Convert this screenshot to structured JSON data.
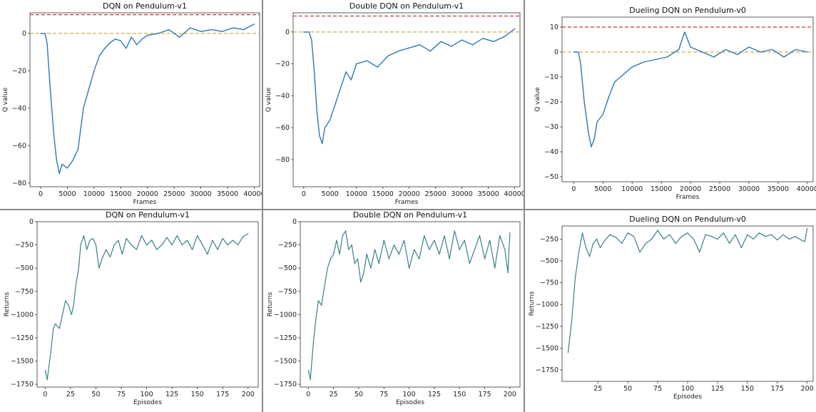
{
  "colors": {
    "q_line": "#2e79b5",
    "return_line": "#3b7f8a",
    "red_ref": "#c8373e",
    "yellow_ref": "#c9b04a",
    "frame": "#8a8a8a"
  },
  "chart_data": [
    {
      "type": "line",
      "title": "DQN on Pendulum-v1",
      "xlabel": "Frames",
      "ylabel": "Q value",
      "xlim": [
        -2000,
        41000
      ],
      "ylim": [
        -82,
        11
      ],
      "xticks": [
        0,
        5000,
        10000,
        15000,
        20000,
        25000,
        30000,
        35000,
        40000
      ],
      "yticks": [
        0,
        -20,
        -40,
        -60,
        -80
      ],
      "reference_lines": [
        {
          "y": 10,
          "color": "red",
          "style": "dashed"
        },
        {
          "y": 0,
          "color": "yellow",
          "style": "dashed"
        }
      ],
      "series": [
        {
          "x": [
            0,
            800,
            1200,
            1800,
            2500,
            3000,
            3500,
            4000,
            5000,
            6000,
            7000,
            8000,
            9000,
            10000,
            11000,
            12000,
            13000,
            14000,
            15000,
            16000,
            17000,
            18000,
            19000,
            20000,
            22000,
            24000,
            26000,
            28000,
            30000,
            32000,
            34000,
            36000,
            38000,
            40000
          ],
          "values": [
            0,
            0,
            -5,
            -30,
            -55,
            -68,
            -75,
            -70,
            -72,
            -68,
            -62,
            -40,
            -30,
            -20,
            -12,
            -8,
            -5,
            -3,
            -4,
            -8,
            -2,
            -6,
            -3,
            -1,
            0,
            2,
            -2,
            3,
            1,
            2,
            1,
            3,
            2,
            5
          ]
        }
      ]
    },
    {
      "type": "line",
      "title": "Double DQN on Pendulum-v1",
      "xlabel": "Frames",
      "ylabel": "Q value",
      "xlim": [
        -2000,
        41000
      ],
      "ylim": [
        -97,
        12
      ],
      "xticks": [
        0,
        5000,
        10000,
        15000,
        20000,
        25000,
        30000,
        35000,
        40000
      ],
      "yticks": [
        0,
        -20,
        -40,
        -60,
        -80
      ],
      "reference_lines": [
        {
          "y": 10,
          "color": "red",
          "style": "dashed"
        },
        {
          "y": 0,
          "color": "yellow",
          "style": "dashed"
        }
      ],
      "series": [
        {
          "x": [
            0,
            1000,
            1500,
            2000,
            2500,
            3000,
            3500,
            4000,
            5000,
            6000,
            7000,
            8000,
            9000,
            10000,
            12000,
            14000,
            16000,
            18000,
            20000,
            22000,
            24000,
            26000,
            28000,
            30000,
            32000,
            34000,
            36000,
            38000,
            40000
          ],
          "values": [
            0,
            0,
            -5,
            -25,
            -50,
            -65,
            -70,
            -60,
            -55,
            -45,
            -35,
            -25,
            -30,
            -20,
            -18,
            -22,
            -15,
            -12,
            -10,
            -8,
            -12,
            -6,
            -9,
            -5,
            -8,
            -4,
            -6,
            -3,
            2
          ]
        }
      ]
    },
    {
      "type": "line",
      "title": "Dueling DQN on Pendulum-v0",
      "xlabel": "Frames",
      "ylabel": "Q value",
      "xlim": [
        -2000,
        41000
      ],
      "ylim": [
        -52,
        14
      ],
      "xticks": [
        0,
        5000,
        10000,
        15000,
        20000,
        25000,
        30000,
        35000,
        40000
      ],
      "yticks": [
        10,
        0,
        -10,
        -20,
        -30,
        -40,
        -50
      ],
      "reference_lines": [
        {
          "y": 10,
          "color": "red",
          "style": "dashed"
        },
        {
          "y": 0,
          "color": "yellow",
          "style": "dashed"
        }
      ],
      "series": [
        {
          "x": [
            0,
            800,
            1200,
            1800,
            2500,
            3000,
            3500,
            4000,
            5000,
            6000,
            7000,
            8000,
            9000,
            10000,
            12000,
            14000,
            16000,
            18000,
            19000,
            20000,
            22000,
            24000,
            26000,
            28000,
            30000,
            32000,
            34000,
            36000,
            38000,
            40000
          ],
          "values": [
            0,
            0,
            -5,
            -20,
            -32,
            -38,
            -35,
            -28,
            -25,
            -18,
            -12,
            -10,
            -8,
            -6,
            -4,
            -3,
            -2,
            1,
            8,
            2,
            0,
            -2,
            1,
            -1,
            2,
            0,
            1,
            -2,
            1,
            0
          ]
        }
      ]
    },
    {
      "type": "line",
      "title": "DQN on Pendulum-v1",
      "xlabel": "Episodes",
      "ylabel": "Returns",
      "xlim": [
        -8,
        210
      ],
      "ylim": [
        -1780,
        0
      ],
      "xticks": [
        0,
        25,
        50,
        75,
        100,
        125,
        150,
        175,
        200
      ],
      "yticks": [
        0,
        -250,
        -500,
        -750,
        -1000,
        -1250,
        -1500,
        -1750
      ],
      "series": [
        {
          "x": [
            0,
            2,
            5,
            8,
            10,
            14,
            17,
            20,
            23,
            26,
            28,
            30,
            33,
            35,
            38,
            41,
            44,
            47,
            50,
            53,
            56,
            60,
            64,
            68,
            72,
            76,
            80,
            85,
            90,
            95,
            100,
            105,
            110,
            115,
            120,
            125,
            130,
            135,
            140,
            145,
            150,
            155,
            160,
            165,
            170,
            175,
            180,
            185,
            190,
            195,
            200
          ],
          "values": [
            -1600,
            -1700,
            -1450,
            -1150,
            -1100,
            -1150,
            -1000,
            -850,
            -900,
            -1000,
            -900,
            -700,
            -500,
            -250,
            -150,
            -300,
            -200,
            -180,
            -250,
            -500,
            -400,
            -300,
            -380,
            -250,
            -200,
            -350,
            -180,
            -250,
            -300,
            -150,
            -250,
            -200,
            -300,
            -250,
            -170,
            -250,
            -150,
            -250,
            -200,
            -300,
            -150,
            -250,
            -350,
            -200,
            -300,
            -180,
            -250,
            -200,
            -250,
            -160,
            -130
          ]
        }
      ]
    },
    {
      "type": "line",
      "title": "Double DQN on Pendulum-v1",
      "xlabel": "Episodes",
      "ylabel": "Returns",
      "xlim": [
        -8,
        210
      ],
      "ylim": [
        -1780,
        0
      ],
      "xticks": [
        0,
        25,
        50,
        75,
        100,
        125,
        150,
        175,
        200
      ],
      "yticks": [
        0,
        -250,
        -500,
        -750,
        -1000,
        -1250,
        -1500,
        -1750
      ],
      "series": [
        {
          "x": [
            0,
            2,
            5,
            8,
            10,
            13,
            16,
            19,
            22,
            25,
            28,
            31,
            34,
            37,
            40,
            43,
            46,
            49,
            52,
            55,
            58,
            62,
            66,
            70,
            75,
            80,
            85,
            90,
            95,
            100,
            105,
            110,
            115,
            120,
            125,
            130,
            135,
            140,
            145,
            150,
            155,
            160,
            165,
            170,
            175,
            180,
            185,
            190,
            195,
            198,
            200
          ],
          "values": [
            -1600,
            -1700,
            -1300,
            -1000,
            -850,
            -900,
            -700,
            -500,
            -400,
            -350,
            -200,
            -350,
            -150,
            -100,
            -300,
            -250,
            -450,
            -400,
            -650,
            -550,
            -350,
            -500,
            -300,
            -450,
            -200,
            -400,
            -250,
            -350,
            -200,
            -500,
            -300,
            -400,
            -150,
            -300,
            -200,
            -350,
            -150,
            -400,
            -100,
            -300,
            -200,
            -450,
            -300,
            -150,
            -400,
            -200,
            -500,
            -150,
            -300,
            -550,
            -120
          ]
        }
      ]
    },
    {
      "type": "line",
      "title": "Dueling DQN on Pendulum-v0",
      "xlabel": "Episodes",
      "ylabel": "Returns",
      "xlim": [
        -5,
        205
      ],
      "ylim": [
        -1880,
        -100
      ],
      "xticks": [
        25,
        50,
        75,
        100,
        125,
        150,
        175,
        200
      ],
      "xtick_labels": [
        "25",
        "50",
        "75",
        "100",
        "125",
        "150",
        "175",
        "200"
      ],
      "yticks": [
        -250,
        -500,
        -750,
        -1000,
        -1250,
        -1500,
        -1750
      ],
      "series": [
        {
          "x": [
            0,
            3,
            6,
            9,
            12,
            15,
            18,
            21,
            24,
            27,
            30,
            35,
            40,
            45,
            50,
            55,
            60,
            65,
            70,
            75,
            80,
            85,
            90,
            95,
            100,
            105,
            110,
            115,
            120,
            125,
            130,
            135,
            140,
            145,
            150,
            155,
            160,
            165,
            170,
            175,
            180,
            185,
            190,
            195,
            198,
            200
          ],
          "values": [
            -1550,
            -1200,
            -700,
            -400,
            -180,
            -350,
            -450,
            -300,
            -250,
            -350,
            -280,
            -200,
            -230,
            -300,
            -180,
            -220,
            -400,
            -300,
            -250,
            -150,
            -250,
            -200,
            -300,
            -220,
            -180,
            -250,
            -400,
            -200,
            -220,
            -250,
            -180,
            -300,
            -200,
            -350,
            -200,
            -250,
            -180,
            -220,
            -200,
            -260,
            -200,
            -250,
            -220,
            -260,
            -280,
            -130
          ]
        }
      ]
    }
  ]
}
